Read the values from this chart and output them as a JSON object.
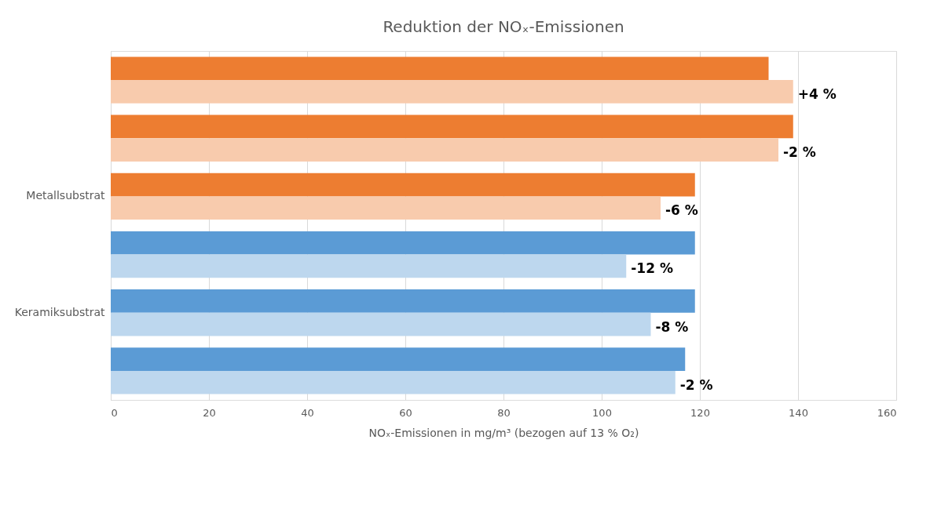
{
  "chart_data": {
    "type": "bar",
    "orientation": "horizontal",
    "title": "Reduktion der NOₓ-Emissionen",
    "xlabel": "NOₓ-Emissionen in mg/m³ (bezogen auf 13 % O₂)",
    "categories": [
      null,
      null,
      "Metallsubstrat",
      null,
      "Keramiksubstrat",
      null
    ],
    "series": [
      {
        "colors": [
          "#ed7d31",
          "#ed7d31",
          "#ed7d31",
          "#5b9bd5",
          "#5b9bd5",
          "#5b9bd5"
        ],
        "values": [
          134,
          139,
          119,
          119,
          119,
          117
        ]
      },
      {
        "colors": [
          "#f8cbad",
          "#f8cbad",
          "#f8cbad",
          "#bdd7ee",
          "#bdd7ee",
          "#bdd7ee"
        ],
        "values": [
          139,
          136,
          112,
          105,
          110,
          115
        ]
      }
    ],
    "annotations": [
      {
        "text": "+4 %",
        "x": 139
      },
      {
        "text": "-2 %",
        "x": 136
      },
      {
        "text": "-6 %",
        "x": 112
      },
      {
        "text": "-12 %",
        "x": 105
      },
      {
        "text": "-8 %",
        "x": 110
      },
      {
        "text": "-2 %",
        "x": 115
      }
    ],
    "xlim": [
      0,
      160
    ],
    "xticks": [
      0,
      20,
      40,
      60,
      80,
      100,
      120,
      140,
      160
    ],
    "grid": "x"
  }
}
